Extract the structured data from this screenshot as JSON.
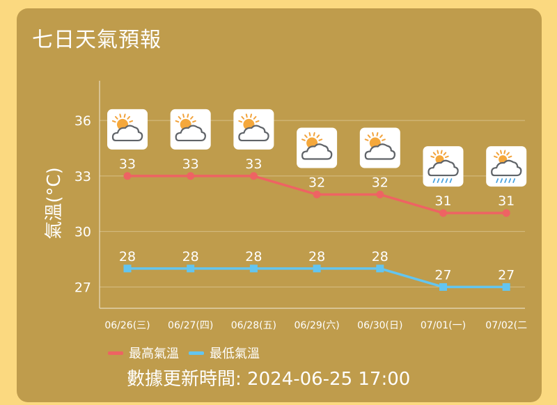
{
  "title": "七日天氣預報",
  "updated": "數據更新時間: 2024-06-25 17:00",
  "colors": {
    "background": "#fbd980",
    "card": "#bf9c4c",
    "high": "#ee6363",
    "low": "#63c5f0",
    "text": "#ffffff"
  },
  "chart_data": {
    "type": "line",
    "ylabel": "氣溫(°C)",
    "xlabel": "",
    "ylim": [
      25.85,
      38.15
    ],
    "yticks": [
      27,
      30,
      33,
      36
    ],
    "grid": true,
    "legend_position": "bottom-left",
    "categories": [
      "06/26(三)",
      "06/27(四)",
      "06/28(五)",
      "06/29(六)",
      "06/30(日)",
      "07/01(一)",
      "07/02(二"
    ],
    "series": [
      {
        "name": "最高氣溫",
        "color": "#ee6363",
        "values": [
          33,
          33,
          33,
          32,
          32,
          31,
          31
        ]
      },
      {
        "name": "最低氣溫",
        "color": "#63c5f0",
        "values": [
          28,
          28,
          28,
          28,
          28,
          27,
          27
        ]
      }
    ],
    "weather_icons": [
      "partly-cloudy-icon",
      "partly-cloudy-icon",
      "partly-cloudy-icon",
      "partly-cloudy-icon",
      "partly-cloudy-icon",
      "rain-cloud-icon",
      "rain-cloud-icon"
    ]
  }
}
